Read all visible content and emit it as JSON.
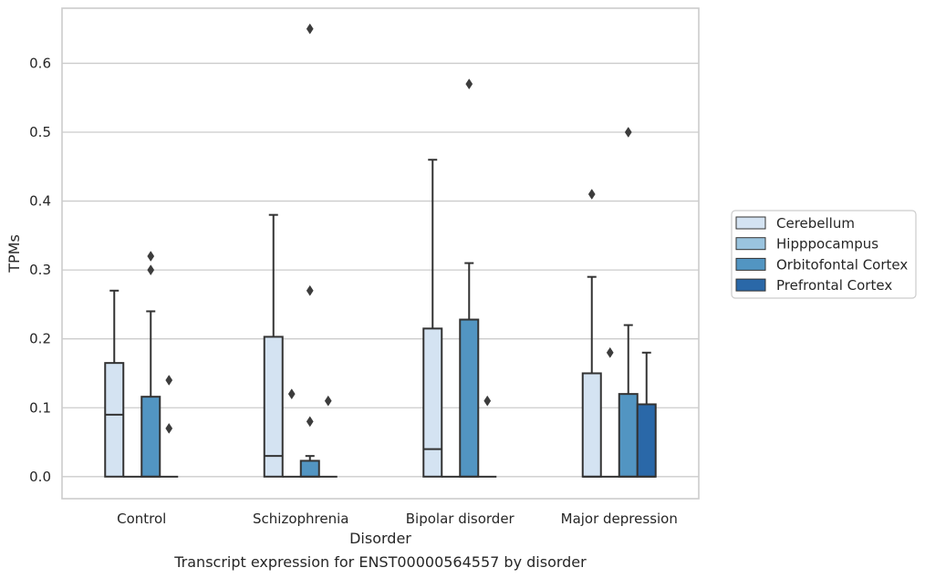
{
  "chart_data": {
    "type": "box",
    "title": "",
    "caption": "Transcript expression for ENST00000564557 by disorder",
    "xlabel": "Disorder",
    "ylabel": "TPMs",
    "ylim": [
      -0.032,
      0.68
    ],
    "yticks": [
      "0.0",
      "0.1",
      "0.2",
      "0.3",
      "0.4",
      "0.5",
      "0.6"
    ],
    "grid": "horizontal",
    "legend_position": "right",
    "categories": [
      "Control",
      "Schizophrenia",
      "Bipolar disorder",
      "Major depression"
    ],
    "series": [
      {
        "name": "Cerebellum",
        "color": "#d4e3f2",
        "boxes": [
          {
            "q1": 0,
            "median": 0.09,
            "q3": 0.165,
            "whisker_low": 0,
            "whisker_high": 0.27,
            "outliers": []
          },
          {
            "q1": 0,
            "median": 0.03,
            "q3": 0.203,
            "whisker_low": 0,
            "whisker_high": 0.38,
            "outliers": []
          },
          {
            "q1": 0,
            "median": 0.04,
            "q3": 0.215,
            "whisker_low": 0,
            "whisker_high": 0.46,
            "outliers": []
          },
          {
            "q1": 0,
            "median": 0,
            "q3": 0.15,
            "whisker_low": 0,
            "whisker_high": 0.29,
            "outliers": [
              0.41
            ]
          }
        ]
      },
      {
        "name": "Hipppocampus",
        "color": "#9ac4df",
        "boxes": [
          {
            "q1": 0,
            "median": 0,
            "q3": 0,
            "whisker_low": 0,
            "whisker_high": 0,
            "outliers": []
          },
          {
            "q1": 0,
            "median": 0,
            "q3": 0,
            "whisker_low": 0,
            "whisker_high": 0,
            "outliers": [
              0.12
            ]
          },
          {
            "q1": 0,
            "median": 0,
            "q3": 0,
            "whisker_low": 0,
            "whisker_high": 0,
            "outliers": []
          },
          {
            "q1": 0,
            "median": 0,
            "q3": 0,
            "whisker_low": 0,
            "whisker_high": 0,
            "outliers": [
              0.18
            ]
          }
        ]
      },
      {
        "name": "Orbitofontal Cortex",
        "color": "#5295c2",
        "boxes": [
          {
            "q1": 0,
            "median": 0,
            "q3": 0.116,
            "whisker_low": 0,
            "whisker_high": 0.24,
            "outliers": [
              0.3,
              0.32
            ]
          },
          {
            "q1": 0,
            "median": 0,
            "q3": 0.023,
            "whisker_low": 0,
            "whisker_high": 0.03,
            "outliers": [
              0.08,
              0.27,
              0.65
            ]
          },
          {
            "q1": 0,
            "median": 0,
            "q3": 0.228,
            "whisker_low": 0,
            "whisker_high": 0.31,
            "outliers": [
              0.57
            ]
          },
          {
            "q1": 0,
            "median": 0,
            "q3": 0.12,
            "whisker_low": 0,
            "whisker_high": 0.22,
            "outliers": [
              0.5
            ]
          }
        ]
      },
      {
        "name": "Prefrontal Cortex",
        "color": "#2a68a8",
        "boxes": [
          {
            "q1": 0,
            "median": 0,
            "q3": 0,
            "whisker_low": 0,
            "whisker_high": 0,
            "outliers": [
              0.07,
              0.14
            ]
          },
          {
            "q1": 0,
            "median": 0,
            "q3": 0,
            "whisker_low": 0,
            "whisker_high": 0,
            "outliers": [
              0.11
            ]
          },
          {
            "q1": 0,
            "median": 0,
            "q3": 0,
            "whisker_low": 0,
            "whisker_high": 0,
            "outliers": [
              0.11
            ]
          },
          {
            "q1": 0,
            "median": 0,
            "q3": 0.105,
            "whisker_low": 0,
            "whisker_high": 0.18,
            "outliers": []
          }
        ]
      }
    ]
  }
}
